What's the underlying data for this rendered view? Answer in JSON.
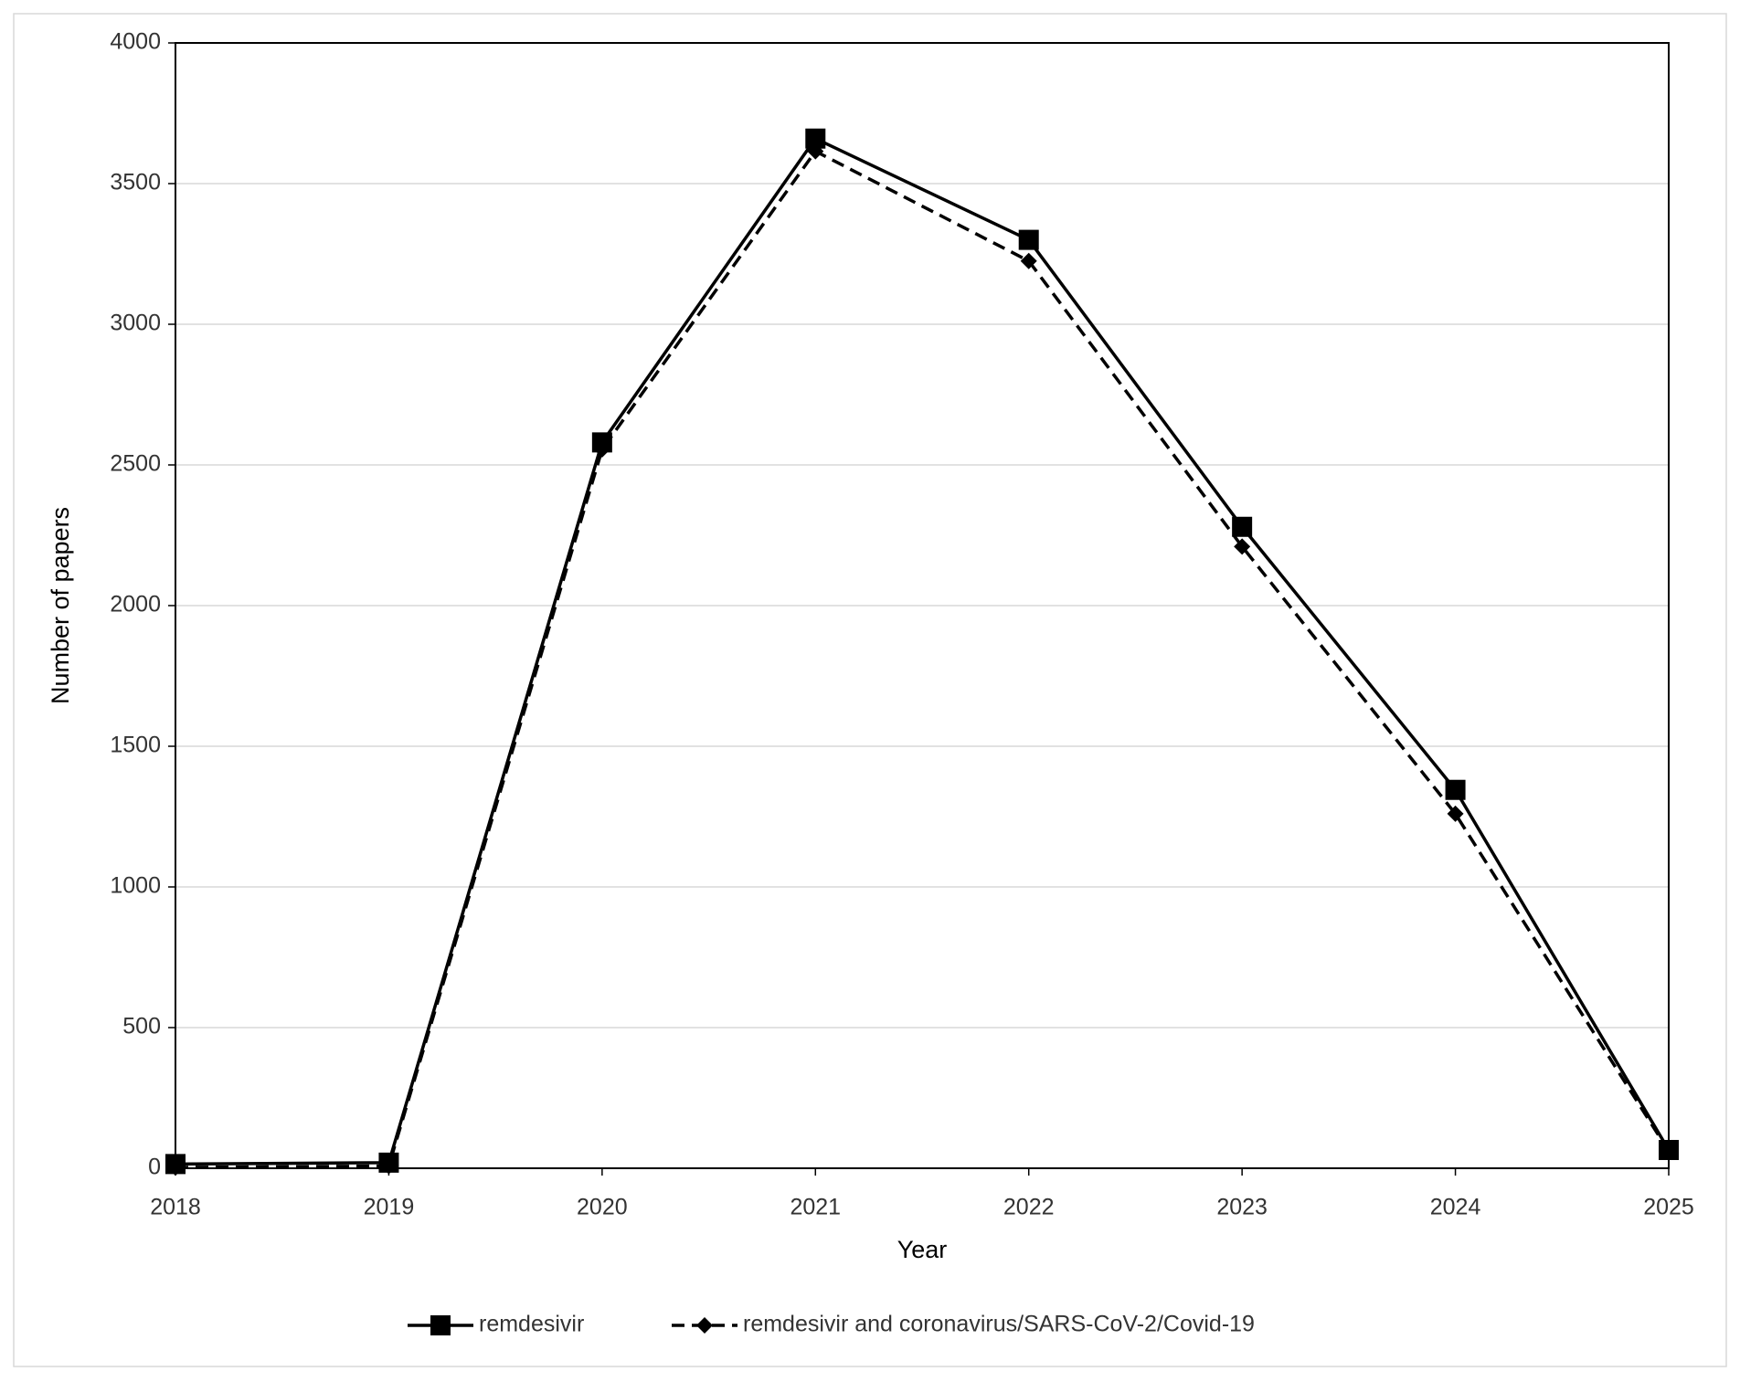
{
  "chart_data": {
    "type": "line",
    "x_label": "Year",
    "y_label": "Number of papers",
    "x": [
      2018,
      2019,
      2020,
      2021,
      2022,
      2023,
      2024,
      2025
    ],
    "xlim": [
      2018,
      2025
    ],
    "xticks": [
      2018,
      2019,
      2020,
      2021,
      2022,
      2023,
      2024,
      2025
    ],
    "ylim": [
      0,
      4000
    ],
    "yticks": [
      0,
      500,
      1000,
      1500,
      2000,
      2500,
      3000,
      3500,
      4000
    ],
    "grid": true,
    "legend": "bottom",
    "series": [
      {
        "name": "remdesivir",
        "color": "#000000",
        "marker": "square",
        "line_style": "solid",
        "values": [
          15,
          20,
          2580,
          3660,
          3300,
          2280,
          1345,
          65
        ]
      },
      {
        "name": "remdesivir and coronavirus/SARS-CoV-2/Covid-19",
        "color": "#000000",
        "marker": "diamond",
        "line_style": "dashed",
        "values": [
          3,
          8,
          2555,
          3615,
          3225,
          2210,
          1260,
          60
        ]
      }
    ]
  }
}
